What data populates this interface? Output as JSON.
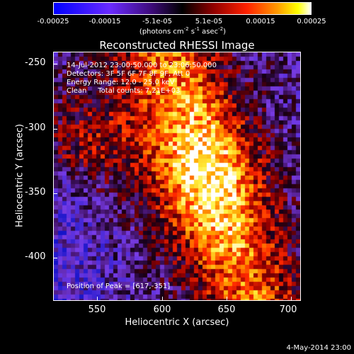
{
  "colorbar": {
    "ticks": [
      "-0.00025",
      "-0.00015",
      "-5.1e-05",
      "5.1e-05",
      "0.00015",
      "0.00025"
    ],
    "units_main": "(photons cm",
    "units_exp1": "-2",
    "units_mid": " s",
    "units_exp2": "-1",
    "units_mid2": " asec",
    "units_exp3": "-2",
    "units_end": ")"
  },
  "title": "Reconstructed RHESSI Image",
  "info": {
    "time": "14-Jul-2012 23:00:50.000 to 23:06:50.000",
    "detectors": "Detectors: 3F 5F 6F 7F 8F 9F, Att 0",
    "energy": "Energy Range: 12.0 - 25.0 keV",
    "clean": "Clean     Total counts: 7.21E+03",
    "peak": "Position of Peak = [617,-351]"
  },
  "axes": {
    "xlabel": "Heliocentric X (arcsec)",
    "ylabel": "Heliocentric Y (arcsec)",
    "xticks": [
      "550",
      "600",
      "650",
      "700"
    ],
    "yticks": [
      "-250",
      "-300",
      "-350",
      "-400"
    ],
    "x_range": [
      515,
      707
    ],
    "y_range": [
      -433,
      -241
    ]
  },
  "footer": "4-May-2014 23:00"
}
